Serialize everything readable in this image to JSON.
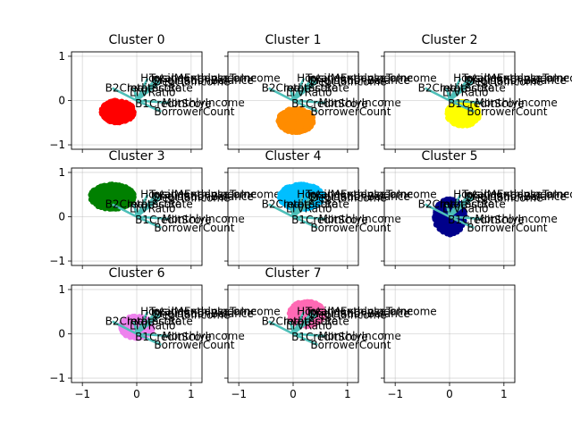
{
  "chart_data": {
    "type": "scatter",
    "layout": "3x3 grid of biplot panels",
    "xlim": [
      -1.2,
      1.2
    ],
    "ylim": [
      -1.1,
      1.1
    ],
    "xticks": [
      -1,
      0,
      1
    ],
    "yticks": [
      -1,
      0,
      1
    ],
    "grid": true,
    "loading_color": "#4dbfb8",
    "loadings": [
      {
        "label": "HousingExpenseToIncome",
        "x": 0.2,
        "y": 0.5
      },
      {
        "label": "TotalMonthlyIncome",
        "x": 0.36,
        "y": 0.5
      },
      {
        "label": "OriginationBalance",
        "x": 0.4,
        "y": 0.45
      },
      {
        "label": "DebtToIncome",
        "x": 0.44,
        "y": 0.42
      },
      {
        "label": "B2CreditScore",
        "x": -0.45,
        "y": 0.28
      },
      {
        "label": "InterestRate",
        "x": -0.05,
        "y": 0.28
      },
      {
        "label": "LTVRatio",
        "x": 0.0,
        "y": 0.18
      },
      {
        "label": "MonthlyIncome",
        "x": 0.6,
        "y": -0.05
      },
      {
        "label": "B1CreditScore",
        "x": 0.1,
        "y": -0.07
      },
      {
        "label": "BorrowerCount",
        "x": 0.45,
        "y": -0.25
      }
    ],
    "panels": [
      {
        "title": "Cluster 0",
        "color": "#ff0000",
        "cx": -0.35,
        "cy": -0.25,
        "rx": 0.3,
        "ry": 0.25,
        "n": 550,
        "seed": 11
      },
      {
        "title": "Cluster 1",
        "color": "#ff8c00",
        "cx": 0.05,
        "cy": -0.45,
        "rx": 0.32,
        "ry": 0.27,
        "n": 550,
        "seed": 23
      },
      {
        "title": "Cluster 2",
        "color": "#ffff00",
        "cx": 0.25,
        "cy": -0.3,
        "rx": 0.3,
        "ry": 0.27,
        "n": 500,
        "seed": 37
      },
      {
        "title": "Cluster 3",
        "color": "#008000",
        "cx": -0.45,
        "cy": 0.45,
        "rx": 0.4,
        "ry": 0.28,
        "n": 650,
        "seed": 41
      },
      {
        "title": "Cluster 4",
        "color": "#00bfff",
        "cx": 0.15,
        "cy": 0.45,
        "rx": 0.4,
        "ry": 0.28,
        "n": 600,
        "seed": 53
      },
      {
        "title": "Cluster 5",
        "color": "#00008b",
        "cx": 0.0,
        "cy": 0.0,
        "rx": 0.28,
        "ry": 0.4,
        "n": 450,
        "seed": 67
      },
      {
        "title": "Cluster 6",
        "color": "#ee82ee",
        "cx": 0.0,
        "cy": 0.15,
        "rx": 0.3,
        "ry": 0.25,
        "n": 400,
        "seed": 71
      },
      {
        "title": "Cluster 7",
        "color": "#ff69b4",
        "cx": 0.25,
        "cy": 0.45,
        "rx": 0.32,
        "ry": 0.28,
        "n": 450,
        "seed": 89
      },
      {
        "title": "",
        "color": "",
        "cx": 0,
        "cy": 0,
        "rx": 0,
        "ry": 0,
        "n": 0,
        "seed": 0
      }
    ]
  }
}
